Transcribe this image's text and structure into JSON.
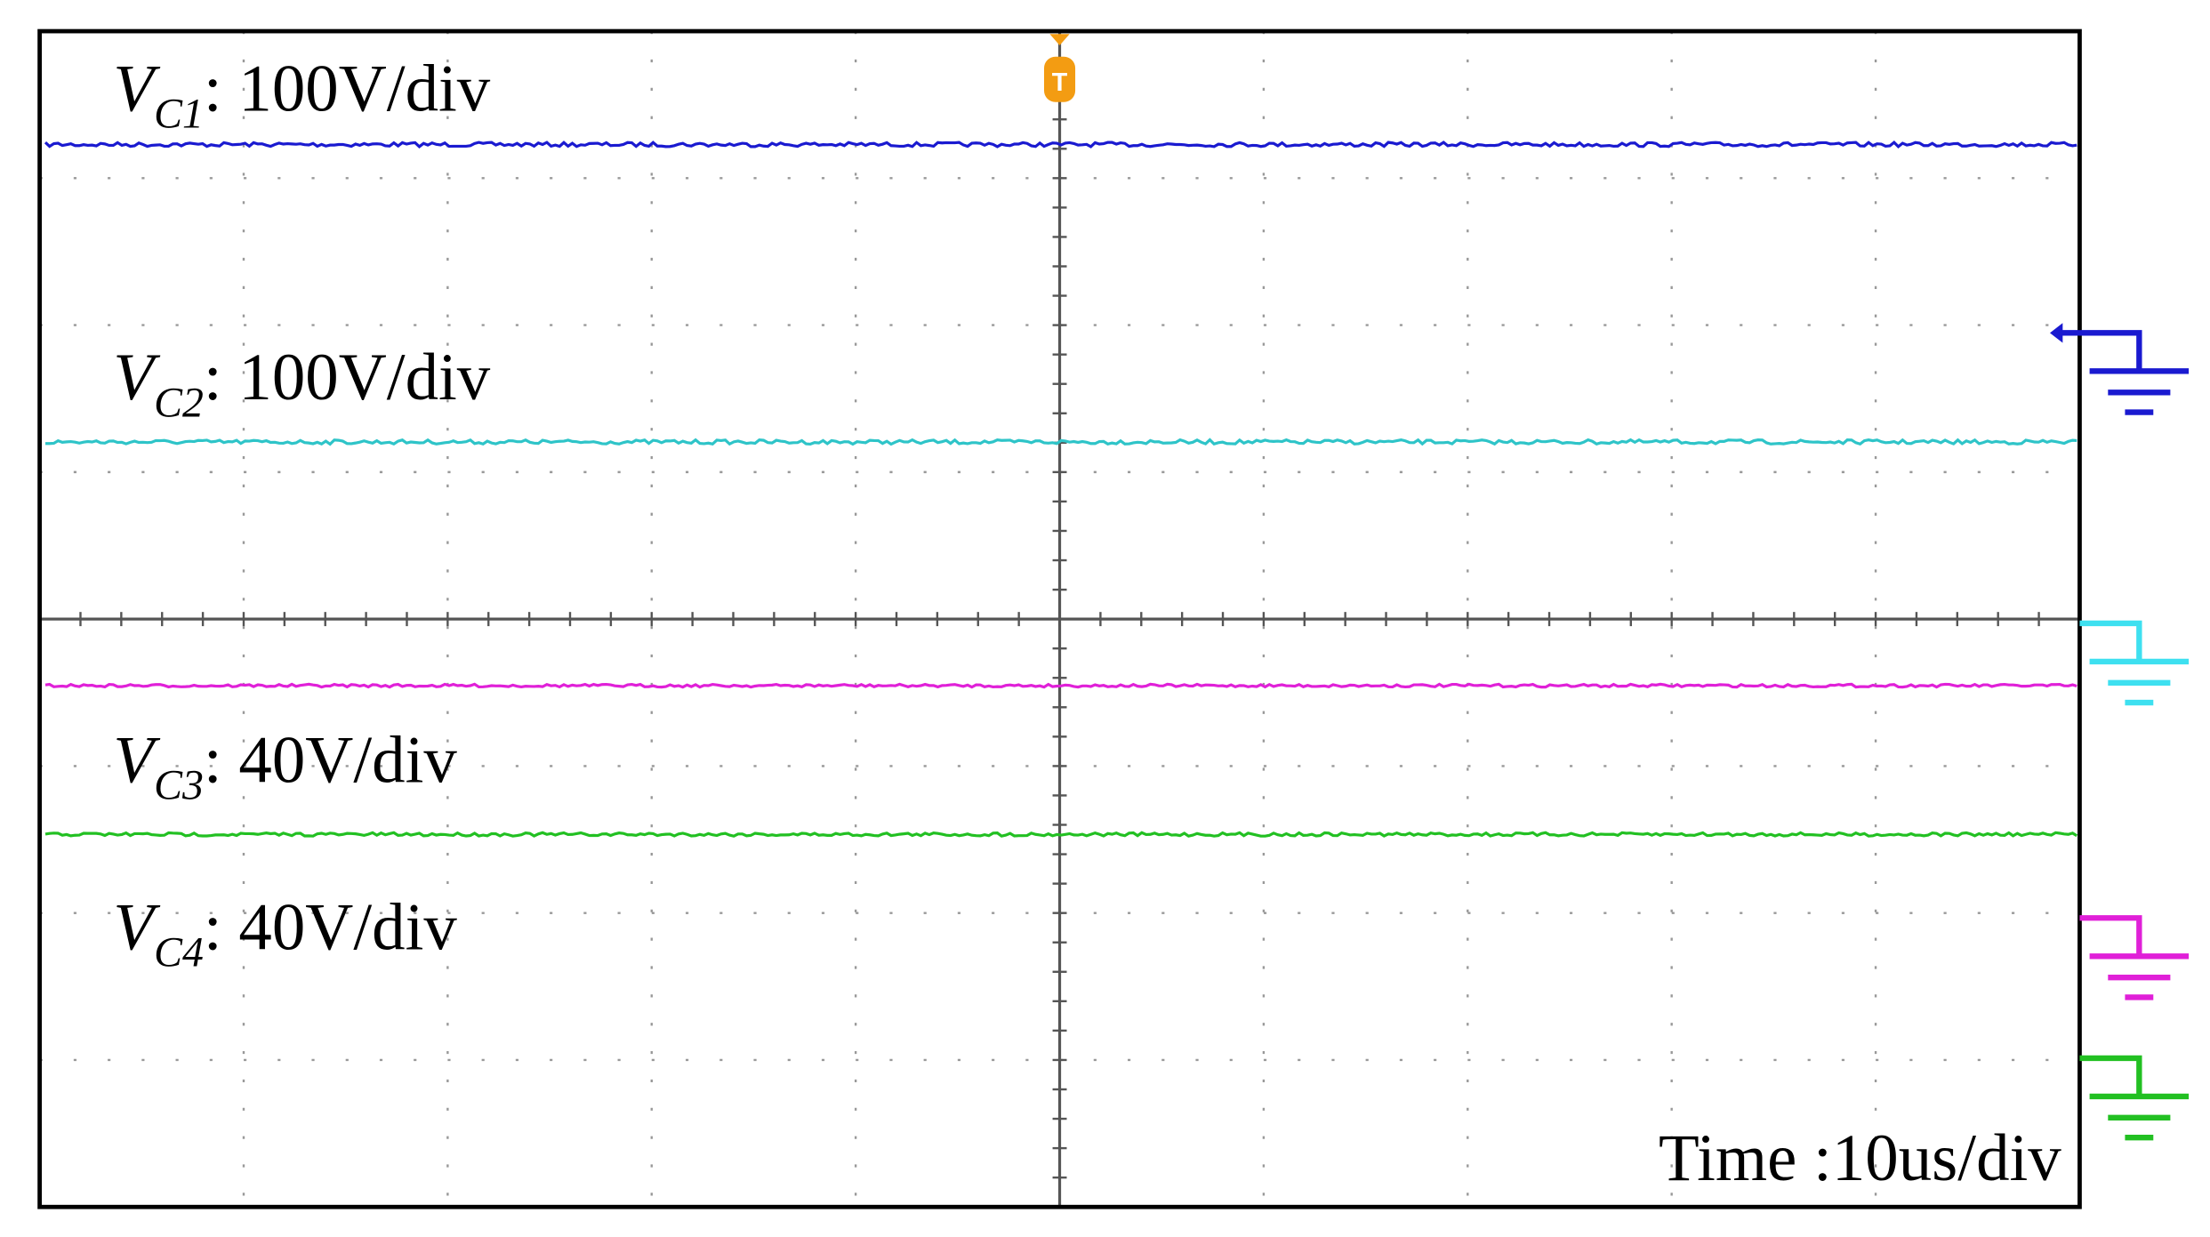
{
  "channels": [
    {
      "symbol": "V",
      "subscript": "C1",
      "scale": ": 100V/div"
    },
    {
      "symbol": "V",
      "subscript": "C2",
      "scale": ": 100V/div"
    },
    {
      "symbol": "V",
      "subscript": "C3",
      "scale": ": 40V/div"
    },
    {
      "symbol": "V",
      "subscript": "C4",
      "scale": ": 40V/div"
    }
  ],
  "timebase": "Time :10us/div"
}
